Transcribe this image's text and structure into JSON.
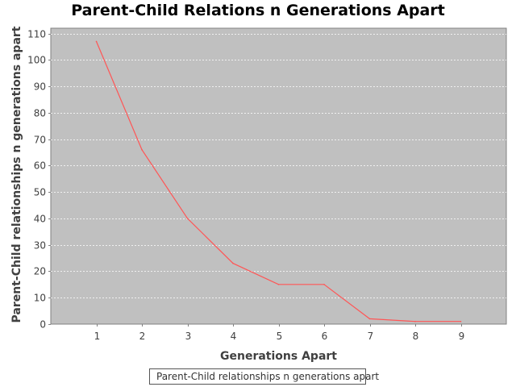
{
  "chart_data": {
    "type": "line",
    "title": "Parent-Child Relations n Generations Apart",
    "xlabel": "Generations Apart",
    "ylabel": "Parent-Child relationships n generations apart",
    "x": [
      1,
      2,
      3,
      4,
      5,
      6,
      7,
      8,
      9
    ],
    "series": [
      {
        "name": "Parent-Child relationships n generations apart",
        "values": [
          107,
          66,
          40,
          23,
          15,
          15,
          2,
          1,
          1
        ],
        "color": "#ff5555"
      }
    ],
    "xlim": [
      0,
      10
    ],
    "ylim": [
      0,
      112
    ],
    "y_ticks": [
      0,
      10,
      20,
      30,
      40,
      50,
      60,
      70,
      80,
      90,
      100,
      110
    ],
    "grid": true,
    "plot_background": "#c0c0c0",
    "grid_color": "#ffffff",
    "legend_position": "bottom"
  }
}
